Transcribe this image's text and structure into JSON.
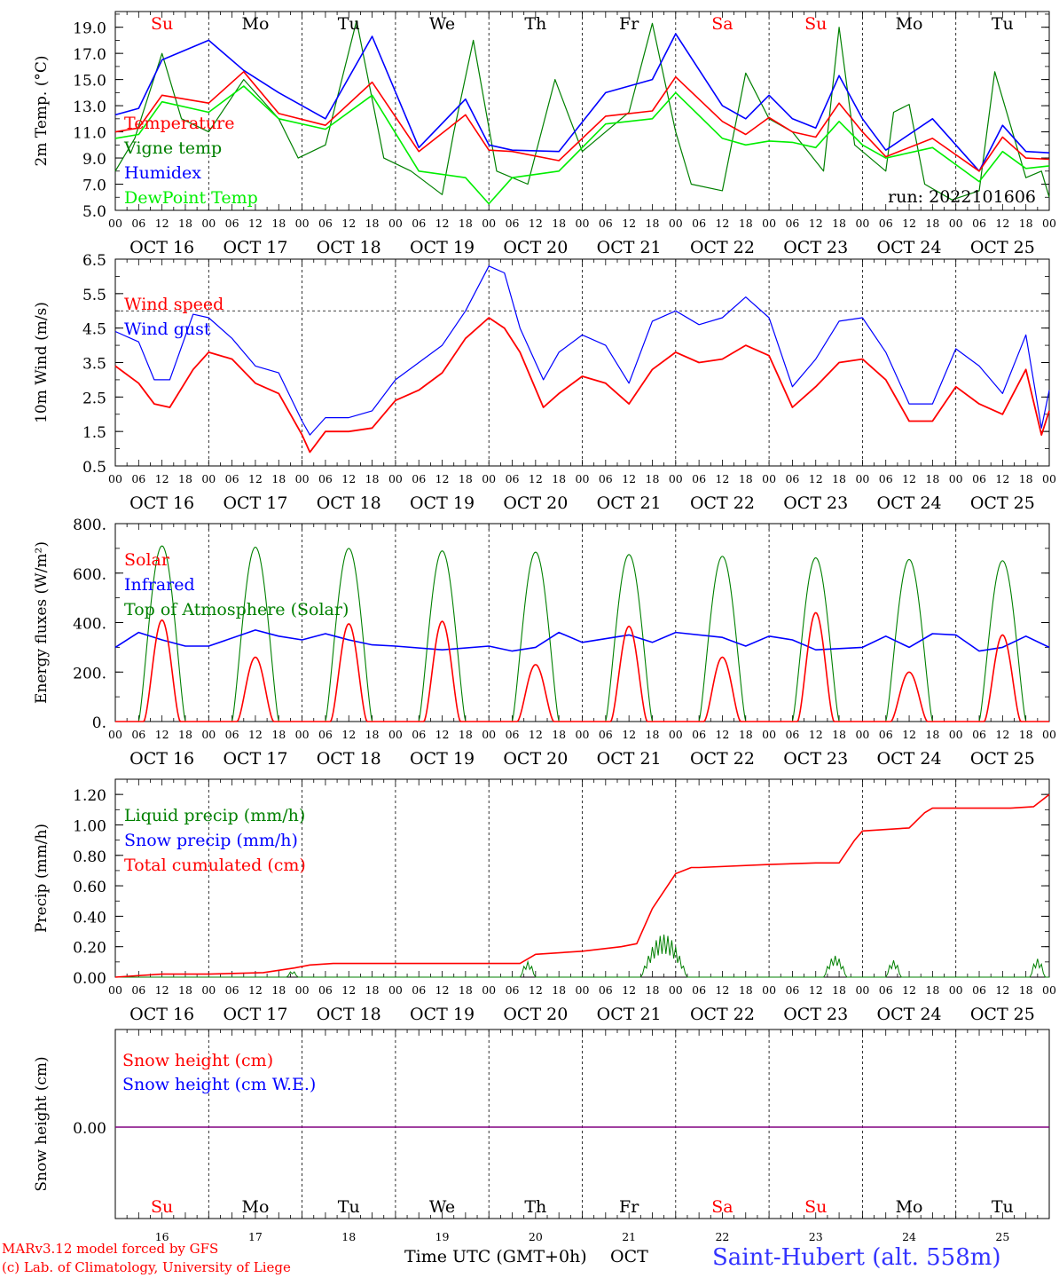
{
  "chart_data": [
    {
      "type": "line",
      "ylabel": "2m Temp. (°C)",
      "ylim": [
        5.0,
        20.2
      ],
      "yticks": [
        "19.0",
        "17.0",
        "15.0",
        "13.0",
        "11.0",
        "9.0",
        "7.0",
        "5.0"
      ],
      "ytick_values": [
        19,
        17,
        15,
        13,
        11,
        9,
        7,
        5
      ],
      "annotation": "run: 2022101606",
      "legend": [
        "Temperature",
        "Vigne temp",
        "Humidex",
        "DewPoint Temp"
      ],
      "series": [
        {
          "name": "Temperature",
          "color": "#ff0000",
          "t": [
            0,
            6,
            12,
            24,
            33,
            42,
            54,
            66,
            78,
            90,
            96,
            102,
            114,
            126,
            138,
            144,
            156,
            162,
            168,
            174,
            180,
            186,
            192,
            198,
            210,
            222,
            228,
            234,
            240
          ],
          "values": [
            11.0,
            11.3,
            13.8,
            13.2,
            15.6,
            12.4,
            11.5,
            14.8,
            9.5,
            12.3,
            9.6,
            9.5,
            8.8,
            12.2,
            12.6,
            15.2,
            11.8,
            10.8,
            12.1,
            11.0,
            10.6,
            13.2,
            11.0,
            9.1,
            10.5,
            8.0,
            10.6,
            9.0,
            8.9
          ]
        },
        {
          "name": "Vigne temp",
          "color": "#008000",
          "t": [
            0,
            5,
            12,
            17,
            24,
            33,
            42,
            47,
            54,
            62,
            69,
            76,
            84,
            87,
            92,
            98,
            106,
            113,
            120,
            132,
            138,
            144,
            148,
            156,
            162,
            168,
            174,
            182,
            186,
            190,
            198,
            200,
            204,
            208,
            215,
            222,
            226,
            234,
            238,
            240
          ],
          "values": [
            8.0,
            10.5,
            17.0,
            12.0,
            11.0,
            15.0,
            12.0,
            9.0,
            10.0,
            19.5,
            9.0,
            8.0,
            6.2,
            11.0,
            18.0,
            8.0,
            7.0,
            15.0,
            9.5,
            12.5,
            19.3,
            11.0,
            7.0,
            6.5,
            15.5,
            12.0,
            11.0,
            8.0,
            19.0,
            10.0,
            8.0,
            12.5,
            13.1,
            7.0,
            5.8,
            6.5,
            15.6,
            7.5,
            8.0,
            6.0
          ]
        },
        {
          "name": "Humidex",
          "color": "#0000ff",
          "t": [
            0,
            6,
            12,
            24,
            33,
            42,
            54,
            66,
            78,
            90,
            96,
            102,
            114,
            126,
            138,
            144,
            156,
            162,
            168,
            174,
            180,
            186,
            192,
            198,
            210,
            222,
            228,
            234,
            240
          ],
          "values": [
            12.3,
            12.8,
            16.5,
            18.0,
            15.7,
            14.0,
            12.0,
            18.3,
            9.8,
            13.5,
            10.0,
            9.6,
            9.5,
            14.0,
            15.0,
            18.5,
            13.0,
            12.0,
            13.8,
            12.0,
            11.3,
            15.3,
            12.0,
            9.6,
            12.0,
            8.0,
            11.5,
            9.5,
            9.4
          ]
        },
        {
          "name": "DewPoint Temp",
          "color": "#00ee00",
          "t": [
            0,
            6,
            12,
            24,
            33,
            42,
            54,
            66,
            78,
            90,
            96,
            102,
            114,
            126,
            138,
            144,
            156,
            162,
            168,
            174,
            180,
            186,
            192,
            198,
            210,
            222,
            228,
            234,
            240
          ],
          "values": [
            10.5,
            10.8,
            13.3,
            12.5,
            14.5,
            12.0,
            11.2,
            13.8,
            8.0,
            7.5,
            5.5,
            7.5,
            8.0,
            11.6,
            12.0,
            14.0,
            10.5,
            10.0,
            10.3,
            10.2,
            9.8,
            11.8,
            10.0,
            9.0,
            9.8,
            7.2,
            9.5,
            8.2,
            8.4
          ]
        }
      ]
    },
    {
      "type": "line",
      "ylabel": "10m Wind (m/s)",
      "ylim": [
        0.5,
        6.5
      ],
      "yticks": [
        "6.5",
        "5.5",
        "4.5",
        "3.5",
        "2.5",
        "1.5",
        "0.5"
      ],
      "ytick_values": [
        6.5,
        5.5,
        4.5,
        3.5,
        2.5,
        1.5,
        0.5
      ],
      "reference_line": 5.0,
      "legend": [
        "Wind speed",
        "Wind gust"
      ],
      "series": [
        {
          "name": "Wind speed",
          "color": "#ff0000",
          "t": [
            0,
            6,
            10,
            14,
            20,
            24,
            30,
            36,
            42,
            48,
            50,
            54,
            60,
            66,
            72,
            78,
            84,
            90,
            96,
            100,
            104,
            110,
            114,
            120,
            126,
            132,
            138,
            144,
            150,
            156,
            162,
            168,
            174,
            180,
            186,
            192,
            198,
            204,
            210,
            216,
            222,
            228,
            234,
            238,
            240
          ],
          "values": [
            3.4,
            2.9,
            2.3,
            2.2,
            3.3,
            3.8,
            3.6,
            2.9,
            2.6,
            1.4,
            0.9,
            1.5,
            1.5,
            1.6,
            2.4,
            2.7,
            3.2,
            4.2,
            4.8,
            4.5,
            3.8,
            2.2,
            2.6,
            3.1,
            2.9,
            2.3,
            3.3,
            3.8,
            3.5,
            3.6,
            4.0,
            3.7,
            2.2,
            2.8,
            3.5,
            3.6,
            3.0,
            1.8,
            1.8,
            2.8,
            2.3,
            2.0,
            3.3,
            1.4,
            2.1
          ]
        },
        {
          "name": "Wind gust",
          "color": "#0000ff",
          "t": [
            0,
            6,
            10,
            14,
            20,
            24,
            30,
            36,
            42,
            48,
            50,
            54,
            60,
            66,
            72,
            78,
            84,
            90,
            96,
            100,
            104,
            110,
            114,
            120,
            126,
            132,
            138,
            144,
            150,
            156,
            162,
            168,
            174,
            180,
            186,
            192,
            198,
            204,
            210,
            216,
            222,
            228,
            234,
            238,
            240
          ],
          "values": [
            4.4,
            4.1,
            3.0,
            3.0,
            4.9,
            4.8,
            4.2,
            3.4,
            3.2,
            1.8,
            1.4,
            1.9,
            1.9,
            2.1,
            3.0,
            3.5,
            4.0,
            5.0,
            6.3,
            6.1,
            4.5,
            3.0,
            3.8,
            4.3,
            4.0,
            2.9,
            4.7,
            5.0,
            4.6,
            4.8,
            5.4,
            4.8,
            2.8,
            3.6,
            4.7,
            4.8,
            3.8,
            2.3,
            2.3,
            3.9,
            3.4,
            2.6,
            4.3,
            1.6,
            2.7
          ]
        }
      ]
    },
    {
      "type": "line",
      "ylabel": "Energy fluxes (W/m²)",
      "ylim": [
        0,
        800
      ],
      "yticks": [
        "800.",
        "600.",
        "400.",
        "200.",
        "0."
      ],
      "ytick_values": [
        800,
        600,
        400,
        200,
        0
      ],
      "legend": [
        "Solar",
        "Infrared",
        "Top of Atmosphere (Solar)"
      ],
      "toa_peaks": [
        710,
        705,
        700,
        690,
        685,
        675,
        668,
        662,
        655,
        650
      ],
      "solar_peaks": [
        410,
        260,
        395,
        405,
        230,
        385,
        260,
        440,
        200,
        350
      ],
      "series": [
        {
          "name": "Infrared",
          "color": "#0000ff",
          "t": [
            0,
            6,
            12,
            18,
            24,
            36,
            42,
            48,
            54,
            60,
            66,
            72,
            84,
            96,
            102,
            108,
            114,
            120,
            132,
            138,
            144,
            156,
            162,
            168,
            174,
            180,
            192,
            198,
            204,
            210,
            216,
            222,
            228,
            234,
            240
          ],
          "values": [
            300,
            360,
            330,
            305,
            305,
            370,
            345,
            330,
            355,
            330,
            310,
            305,
            290,
            305,
            285,
            300,
            360,
            320,
            350,
            320,
            360,
            340,
            305,
            345,
            330,
            290,
            300,
            345,
            300,
            355,
            350,
            285,
            300,
            345,
            300
          ]
        }
      ]
    },
    {
      "type": "line",
      "ylabel": "Precip (mm/h)",
      "ylim": [
        0,
        1.3
      ],
      "yticks": [
        "1.20",
        "1.00",
        "0.80",
        "0.60",
        "0.40",
        "0.20",
        "0.00"
      ],
      "ytick_values": [
        1.2,
        1.0,
        0.8,
        0.6,
        0.4,
        0.2,
        0.0
      ],
      "legend": [
        "Liquid precip (mm/h)",
        "Snow precip (mm/h)",
        "Total cumulated (cm)"
      ],
      "series": [
        {
          "name": "Total cumulated (cm)",
          "color": "#ff0000",
          "t": [
            0,
            12,
            24,
            38,
            46,
            50,
            56,
            72,
            96,
            104,
            108,
            120,
            130,
            134,
            138,
            144,
            148,
            150,
            168,
            180,
            186,
            190,
            192,
            204,
            208,
            210,
            230,
            236,
            240
          ],
          "values": [
            0.0,
            0.02,
            0.02,
            0.03,
            0.06,
            0.08,
            0.09,
            0.09,
            0.09,
            0.09,
            0.15,
            0.17,
            0.2,
            0.22,
            0.45,
            0.68,
            0.72,
            0.72,
            0.74,
            0.75,
            0.75,
            0.9,
            0.96,
            0.98,
            1.08,
            1.11,
            1.11,
            1.12,
            1.2
          ]
        }
      ],
      "liquid_events": [
        {
          "t0": 135,
          "t1": 147,
          "peak": 0.28
        },
        {
          "t0": 182,
          "t1": 188,
          "peak": 0.14
        },
        {
          "t0": 198,
          "t1": 202,
          "peak": 0.11
        },
        {
          "t0": 235,
          "t1": 239,
          "peak": 0.12
        },
        {
          "t0": 104,
          "t1": 108,
          "peak": 0.1
        },
        {
          "t0": 44,
          "t1": 47,
          "peak": 0.04
        }
      ]
    },
    {
      "type": "line",
      "ylabel": "Snow height (cm)",
      "yticks": [
        "0.00"
      ],
      "ytick_values": [
        0
      ],
      "legend": [
        "Snow height (cm)",
        "Snow height (cm W.E.)"
      ],
      "series": [
        {
          "name": "Snow height (cm)",
          "color": "#ff0000",
          "values": [
            0.0,
            0.0
          ]
        },
        {
          "name": "Snow height (cm W.E.)",
          "color": "#0000ff",
          "values": [
            0.0,
            0.0
          ]
        }
      ]
    }
  ],
  "axis": {
    "hour_ticks": [
      "00",
      "06",
      "12",
      "18"
    ],
    "end_tick": "00",
    "date_labels": [
      "OCT 16",
      "OCT 17",
      "OCT 18",
      "OCT 19",
      "OCT 20",
      "OCT 21",
      "OCT 22",
      "OCT 23",
      "OCT 24",
      "OCT 25"
    ],
    "weekdays": [
      "Su",
      "Mo",
      "Tu",
      "We",
      "Th",
      "Fr",
      "Sa",
      "Su",
      "Mo",
      "Tu"
    ],
    "weekend_flags": [
      true,
      false,
      false,
      false,
      false,
      false,
      true,
      true,
      false,
      false
    ],
    "day_numbers": [
      "16",
      "17",
      "18",
      "19",
      "20",
      "21",
      "22",
      "23",
      "24",
      "25"
    ],
    "xlabel": "Time UTC (GMT+0h)",
    "month": "OCT"
  },
  "footer": {
    "credit_line1": "MARv3.12 model forced by GFS",
    "credit_line2": "(c) Lab. of Climatology, University of Liege",
    "station": "Saint-Hubert (alt. 558m)"
  },
  "colors": {
    "red": "#ff0000",
    "blue": "#0000ff",
    "green": "#008000",
    "lightgreen": "#00ee00",
    "purple": "#800080",
    "station_blue": "#3333ff"
  }
}
